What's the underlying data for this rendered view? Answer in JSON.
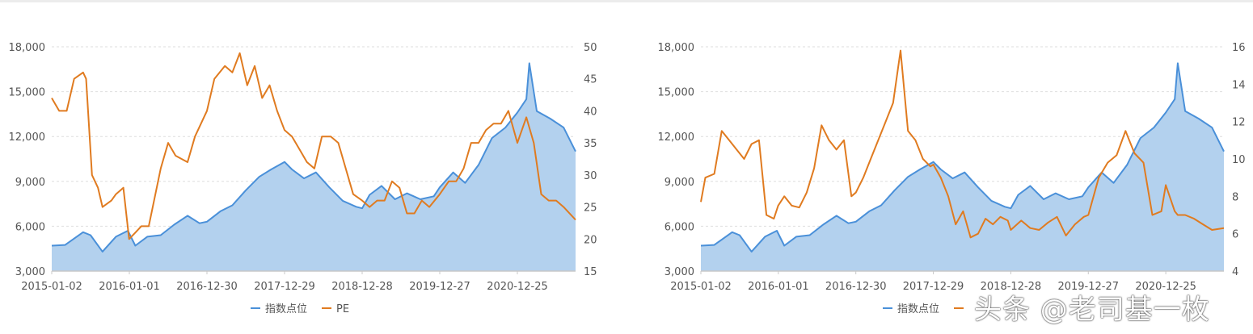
{
  "chart_data": [
    {
      "type": "area+line",
      "x_ticks": [
        "2015-01-02",
        "2016-01-01",
        "2016-12-30",
        "2017-12-29",
        "2018-12-28",
        "2019-12-27",
        "2020-12-25"
      ],
      "x_range": [
        "2015-01-02",
        "2021-09-24"
      ],
      "y_left": {
        "ticks": [
          "3,000",
          "6,000",
          "9,000",
          "12,000",
          "15,000",
          "18,000"
        ],
        "range": [
          3000,
          18000
        ]
      },
      "y_right": {
        "ticks": [
          "15",
          "20",
          "25",
          "30",
          "35",
          "40",
          "45",
          "50"
        ],
        "range": [
          15,
          50
        ]
      },
      "grid": "horizontal-dashed",
      "legend": {
        "position": "bottom-center",
        "items": [
          {
            "label": "指数点位",
            "color": "#4a90d9"
          },
          {
            "label": "PE",
            "color": "#e07b20"
          }
        ]
      },
      "series": [
        {
          "name": "指数点位",
          "axis": "left",
          "color": "#4a90d9",
          "fill": "#b3d1ee",
          "x": [
            "2015-01-02",
            "2015-03-06",
            "2015-05-29",
            "2015-07-03",
            "2015-08-28",
            "2015-10-30",
            "2015-12-25",
            "2016-01-29",
            "2016-03-25",
            "2016-05-27",
            "2016-07-29",
            "2016-09-30",
            "2016-11-25",
            "2016-12-30",
            "2017-03-03",
            "2017-04-28",
            "2017-06-30",
            "2017-09-01",
            "2017-10-27",
            "2017-12-29",
            "2018-02-02",
            "2018-03-30",
            "2018-05-25",
            "2018-07-27",
            "2018-09-28",
            "2018-11-30",
            "2018-12-28",
            "2019-02-01",
            "2019-03-29",
            "2019-05-31",
            "2019-07-26",
            "2019-09-27",
            "2019-11-29",
            "2019-12-27",
            "2020-02-28",
            "2020-04-24",
            "2020-06-26",
            "2020-08-28",
            "2020-10-30",
            "2020-12-25",
            "2021-02-05",
            "2021-02-19",
            "2021-03-26",
            "2021-05-28",
            "2021-07-30",
            "2021-09-24"
          ],
          "values": [
            4700,
            4750,
            5600,
            5400,
            4300,
            5300,
            5700,
            4700,
            5300,
            5400,
            6100,
            6700,
            6200,
            6300,
            7000,
            7400,
            8400,
            9300,
            9800,
            10300,
            9800,
            9200,
            9600,
            8600,
            7700,
            7300,
            7200,
            8100,
            8700,
            7800,
            8200,
            7800,
            8000,
            8600,
            9600,
            8900,
            10100,
            11900,
            12600,
            13600,
            14500,
            16900,
            13700,
            13200,
            12600,
            11000
          ]
        },
        {
          "name": "PE",
          "axis": "right",
          "color": "#e07b20",
          "x": [
            "2015-01-02",
            "2015-02-06",
            "2015-03-13",
            "2015-04-17",
            "2015-05-29",
            "2015-06-12",
            "2015-07-10",
            "2015-08-07",
            "2015-08-28",
            "2015-10-09",
            "2015-10-30",
            "2015-12-04",
            "2015-12-31",
            "2016-01-29",
            "2016-02-26",
            "2016-04-01",
            "2016-05-27",
            "2016-07-01",
            "2016-08-05",
            "2016-09-30",
            "2016-11-04",
            "2016-12-02",
            "2016-12-30",
            "2017-02-03",
            "2017-03-24",
            "2017-04-28",
            "2017-06-02",
            "2017-07-07",
            "2017-08-11",
            "2017-09-15",
            "2017-10-20",
            "2017-11-24",
            "2017-12-29",
            "2018-02-02",
            "2018-03-09",
            "2018-04-13",
            "2018-05-18",
            "2018-06-22",
            "2018-08-03",
            "2018-09-07",
            "2018-10-12",
            "2018-11-16",
            "2018-12-28",
            "2019-02-01",
            "2019-03-08",
            "2019-04-12",
            "2019-05-17",
            "2019-06-21",
            "2019-07-26",
            "2019-08-30",
            "2019-10-04",
            "2019-11-08",
            "2019-12-27",
            "2020-02-07",
            "2020-03-13",
            "2020-04-17",
            "2020-05-22",
            "2020-06-26",
            "2020-07-31",
            "2020-09-04",
            "2020-10-09",
            "2020-11-13",
            "2020-12-25",
            "2021-02-05",
            "2021-03-12",
            "2021-04-16",
            "2021-05-21",
            "2021-06-25",
            "2021-07-30",
            "2021-09-24"
          ],
          "values": [
            42,
            40,
            40,
            45,
            46,
            45,
            30,
            28,
            25,
            26,
            27,
            28,
            20,
            21,
            22,
            22,
            31,
            35,
            33,
            32,
            36,
            38,
            40,
            45,
            47,
            46,
            49,
            44,
            47,
            42,
            44,
            40,
            37,
            36,
            34,
            32,
            31,
            36,
            36,
            35,
            31,
            27,
            26,
            25,
            26,
            26,
            29,
            28,
            24,
            24,
            26,
            25,
            27,
            29,
            29,
            31,
            35,
            35,
            37,
            38,
            38,
            40,
            35,
            39,
            35,
            27,
            26,
            26,
            25,
            23
          ]
        }
      ]
    },
    {
      "type": "area+line",
      "x_ticks": [
        "2015-01-02",
        "2016-01-01",
        "2016-12-30",
        "2017-12-29",
        "2018-12-28",
        "2019-12-27",
        "2020-12-25"
      ],
      "x_range": [
        "2015-01-02",
        "2021-09-24"
      ],
      "y_left": {
        "ticks": [
          "3,000",
          "6,000",
          "9,000",
          "12,000",
          "15,000",
          "18,000"
        ],
        "range": [
          3000,
          18000
        ]
      },
      "y_right": {
        "ticks": [
          "4",
          "6",
          "8",
          "10",
          "12",
          "14",
          "16"
        ],
        "range": [
          4,
          16
        ]
      },
      "grid": "horizontal-dashed",
      "legend": {
        "position": "bottom-center",
        "items": [
          {
            "label": "指数点位",
            "color": "#4a90d9"
          },
          {
            "label": "",
            "color": "#e07b20"
          }
        ]
      },
      "series": [
        {
          "name": "指数点位",
          "axis": "left",
          "color": "#4a90d9",
          "fill": "#b3d1ee",
          "x": [
            "2015-01-02",
            "2015-03-06",
            "2015-05-29",
            "2015-07-03",
            "2015-08-28",
            "2015-10-30",
            "2015-12-25",
            "2016-01-29",
            "2016-03-25",
            "2016-05-27",
            "2016-07-29",
            "2016-09-30",
            "2016-11-25",
            "2016-12-30",
            "2017-03-03",
            "2017-04-28",
            "2017-06-30",
            "2017-09-01",
            "2017-10-27",
            "2017-12-29",
            "2018-02-02",
            "2018-03-30",
            "2018-05-25",
            "2018-07-27",
            "2018-09-28",
            "2018-11-30",
            "2018-12-28",
            "2019-02-01",
            "2019-03-29",
            "2019-05-31",
            "2019-07-26",
            "2019-09-27",
            "2019-11-29",
            "2019-12-27",
            "2020-02-28",
            "2020-04-24",
            "2020-06-26",
            "2020-08-28",
            "2020-10-30",
            "2020-12-25",
            "2021-02-05",
            "2021-02-19",
            "2021-03-26",
            "2021-05-28",
            "2021-07-30",
            "2021-09-24"
          ],
          "values": [
            4700,
            4750,
            5600,
            5400,
            4300,
            5300,
            5700,
            4700,
            5300,
            5400,
            6100,
            6700,
            6200,
            6300,
            7000,
            7400,
            8400,
            9300,
            9800,
            10300,
            9800,
            9200,
            9600,
            8600,
            7700,
            7300,
            7200,
            8100,
            8700,
            7800,
            8200,
            7800,
            8000,
            8600,
            9600,
            8900,
            10100,
            11900,
            12600,
            13600,
            14500,
            16900,
            13700,
            13200,
            12600,
            11000
          ]
        },
        {
          "name": "",
          "axis": "right",
          "color": "#e07b20",
          "x": [
            "2015-01-02",
            "2015-01-23",
            "2015-03-06",
            "2015-04-10",
            "2015-05-15",
            "2015-06-19",
            "2015-07-24",
            "2015-08-28",
            "2015-10-02",
            "2015-11-06",
            "2015-12-11",
            "2015-12-31",
            "2016-01-29",
            "2016-03-04",
            "2016-04-08",
            "2016-05-13",
            "2016-06-17",
            "2016-07-22",
            "2016-08-26",
            "2016-09-30",
            "2016-11-04",
            "2016-12-09",
            "2016-12-30",
            "2017-02-03",
            "2017-03-10",
            "2017-04-14",
            "2017-05-19",
            "2017-06-23",
            "2017-07-28",
            "2017-09-01",
            "2017-10-06",
            "2017-11-10",
            "2017-12-15",
            "2017-12-29",
            "2018-02-02",
            "2018-03-09",
            "2018-04-13",
            "2018-05-18",
            "2018-06-22",
            "2018-07-27",
            "2018-08-31",
            "2018-10-05",
            "2018-11-09",
            "2018-12-14",
            "2018-12-28",
            "2019-02-15",
            "2019-03-29",
            "2019-05-10",
            "2019-06-21",
            "2019-08-02",
            "2019-09-13",
            "2019-10-25",
            "2019-12-06",
            "2019-12-27",
            "2020-02-14",
            "2020-03-27",
            "2020-05-08",
            "2020-06-19",
            "2020-07-31",
            "2020-09-11",
            "2020-10-23",
            "2020-12-04",
            "2020-12-25",
            "2021-02-05",
            "2021-02-19",
            "2021-03-26",
            "2021-05-07",
            "2021-06-18",
            "2021-07-30",
            "2021-09-24"
          ],
          "values": [
            7.7,
            9,
            9.2,
            11.5,
            11,
            10.5,
            10,
            10.8,
            11,
            7,
            6.8,
            7.5,
            8,
            7.5,
            7.4,
            8.2,
            9.5,
            11.8,
            11,
            10.5,
            11,
            8,
            8.2,
            9,
            10,
            11,
            12,
            13,
            15.8,
            11.5,
            11,
            10,
            9.6,
            9.7,
            9,
            8,
            6.5,
            7.2,
            5.8,
            6,
            6.8,
            6.5,
            6.9,
            6.7,
            6.2,
            6.7,
            6.3,
            6.2,
            6.6,
            6.9,
            5.9,
            6.5,
            6.9,
            7,
            9,
            9.8,
            10.2,
            11.5,
            10.3,
            9.8,
            7,
            7.2,
            8.6,
            7.2,
            7,
            7,
            6.8,
            6.5,
            6.2,
            6.3
          ]
        }
      ]
    }
  ],
  "watermark": "头条 @老司基一枚"
}
